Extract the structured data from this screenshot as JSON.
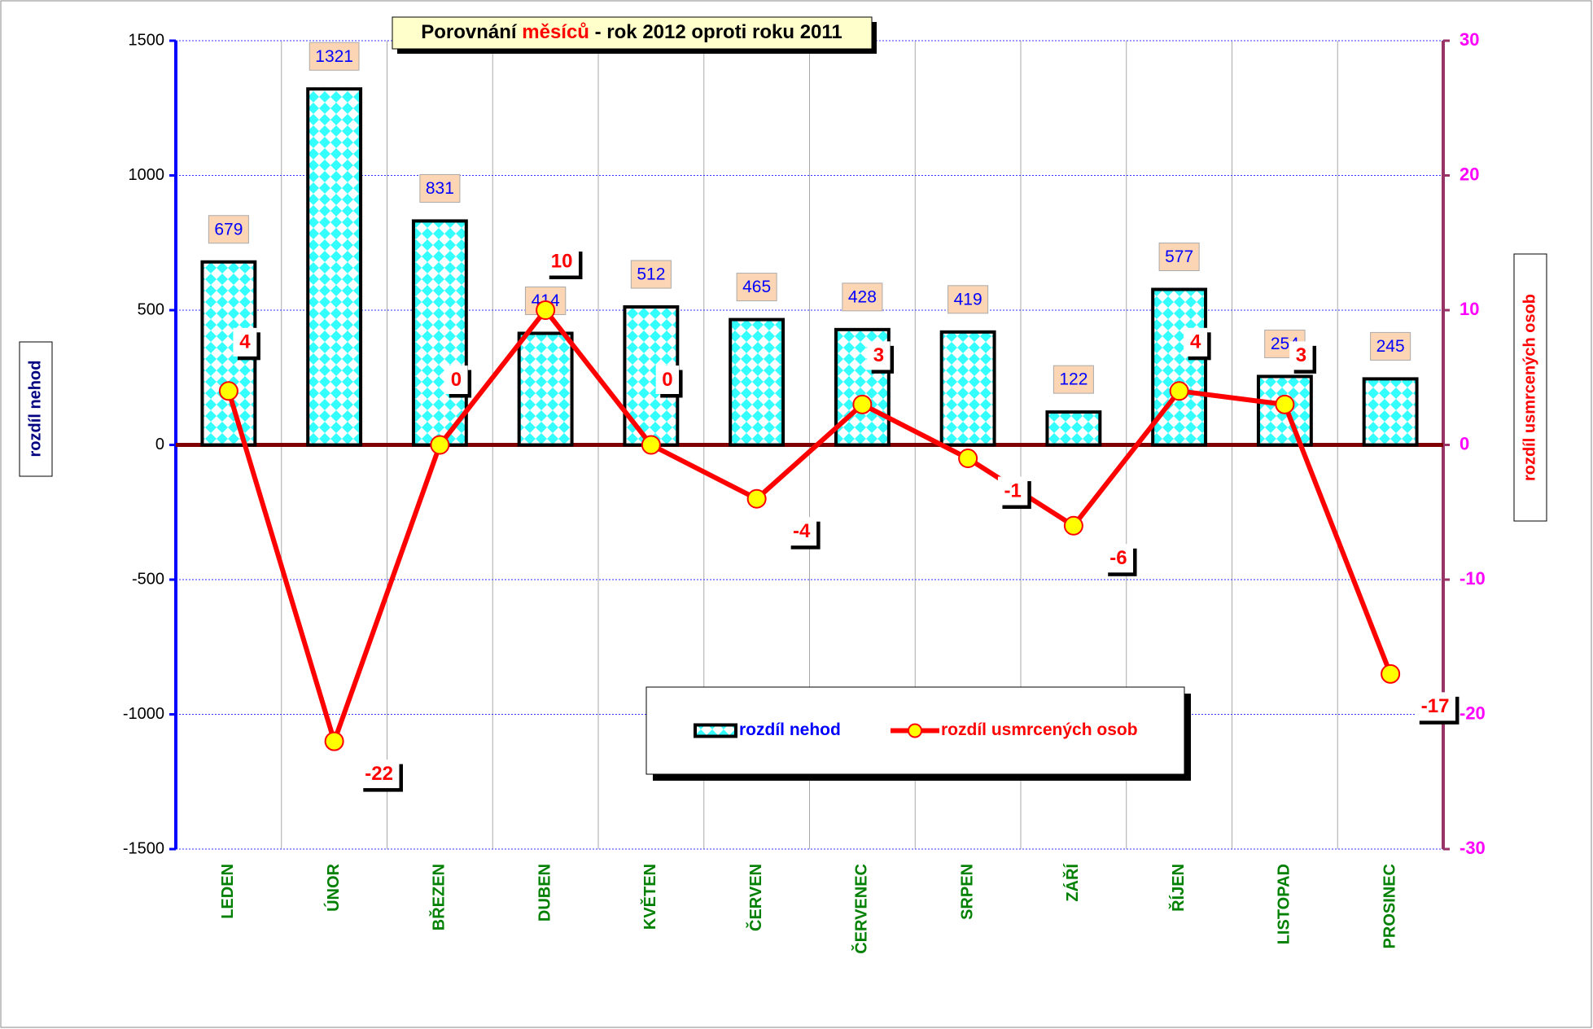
{
  "chart_data": {
    "type": "bar",
    "title": [
      "Porovnání ",
      "měsíců",
      " - rok 2012 oproti roku 2011"
    ],
    "y_label": "rozdíl nehod",
    "y2_label": "rozdíl usmrcených osob",
    "categories": [
      "LEDEN",
      "ÚNOR",
      "BŘEZEN",
      "DUBEN",
      "KVĚTEN",
      "ČERVEN",
      "ČERVENEC",
      "SRPEN",
      "ZÁŘÍ",
      "ŘÍJEN",
      "LISTOPAD",
      "PROSINEC"
    ],
    "series": [
      {
        "name": "rozdíl nehod",
        "type": "bar",
        "color": "#00ffff",
        "values": [
          679,
          1321,
          831,
          414,
          512,
          465,
          428,
          419,
          122,
          577,
          254,
          245
        ]
      },
      {
        "name": "rozdíl usmrcených osob",
        "type": "line",
        "axis": "y2",
        "color": "#ff0000",
        "values": [
          4,
          -22,
          0,
          10,
          0,
          -4,
          3,
          -1,
          -6,
          4,
          3,
          -17
        ]
      }
    ],
    "ylim": [
      -1500,
      1500
    ],
    "yticks": [
      -1500,
      -1000,
      -500,
      0,
      500,
      1000,
      1500
    ],
    "y2lim": [
      -30,
      30
    ],
    "y2ticks": [
      -30,
      -20,
      -10,
      0,
      10,
      20,
      30
    ],
    "grid": true,
    "legend": "bottom"
  }
}
